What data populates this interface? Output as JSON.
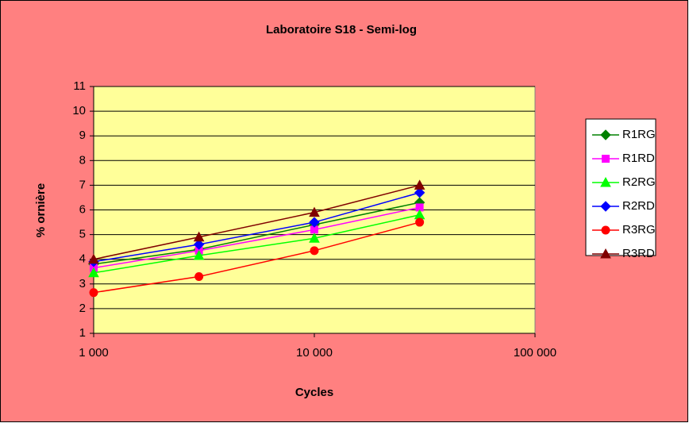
{
  "chart_data": {
    "type": "line",
    "title": "Laboratoire S18 - Semi-log",
    "x_label": "Cycles",
    "y_label": "% ornière",
    "xscale": "log",
    "x": [
      1000,
      3000,
      10000,
      30000
    ],
    "xlim": [
      1000,
      100000
    ],
    "xticks": [
      {
        "value": 1000,
        "label": "1 000"
      },
      {
        "value": 10000,
        "label": "10 000"
      },
      {
        "value": 100000,
        "label": "100 000"
      }
    ],
    "ylim": [
      1,
      11
    ],
    "yticks": [
      1,
      2,
      3,
      4,
      5,
      6,
      7,
      8,
      9,
      10,
      11
    ],
    "grid": true,
    "legend": "right",
    "series": [
      {
        "name": "R1RG",
        "color": "#008000",
        "marker": "diamond",
        "values": [
          3.8,
          4.4,
          5.4,
          6.3
        ]
      },
      {
        "name": "R1RD",
        "color": "#FF00FF",
        "marker": "square",
        "values": [
          3.65,
          4.35,
          5.2,
          6.1
        ]
      },
      {
        "name": "R2RG",
        "color": "#00FF00",
        "marker": "triangle",
        "values": [
          3.45,
          4.15,
          4.85,
          5.8
        ]
      },
      {
        "name": "R2RD",
        "color": "#0000FF",
        "marker": "diamond",
        "values": [
          3.9,
          4.6,
          5.5,
          6.7
        ]
      },
      {
        "name": "R3RG",
        "color": "#FF0000",
        "marker": "circle",
        "values": [
          2.65,
          3.3,
          4.35,
          5.5
        ]
      },
      {
        "name": "R3RD",
        "color": "#800000",
        "marker": "triangle",
        "values": [
          4.0,
          4.9,
          5.9,
          7.0
        ]
      }
    ]
  }
}
